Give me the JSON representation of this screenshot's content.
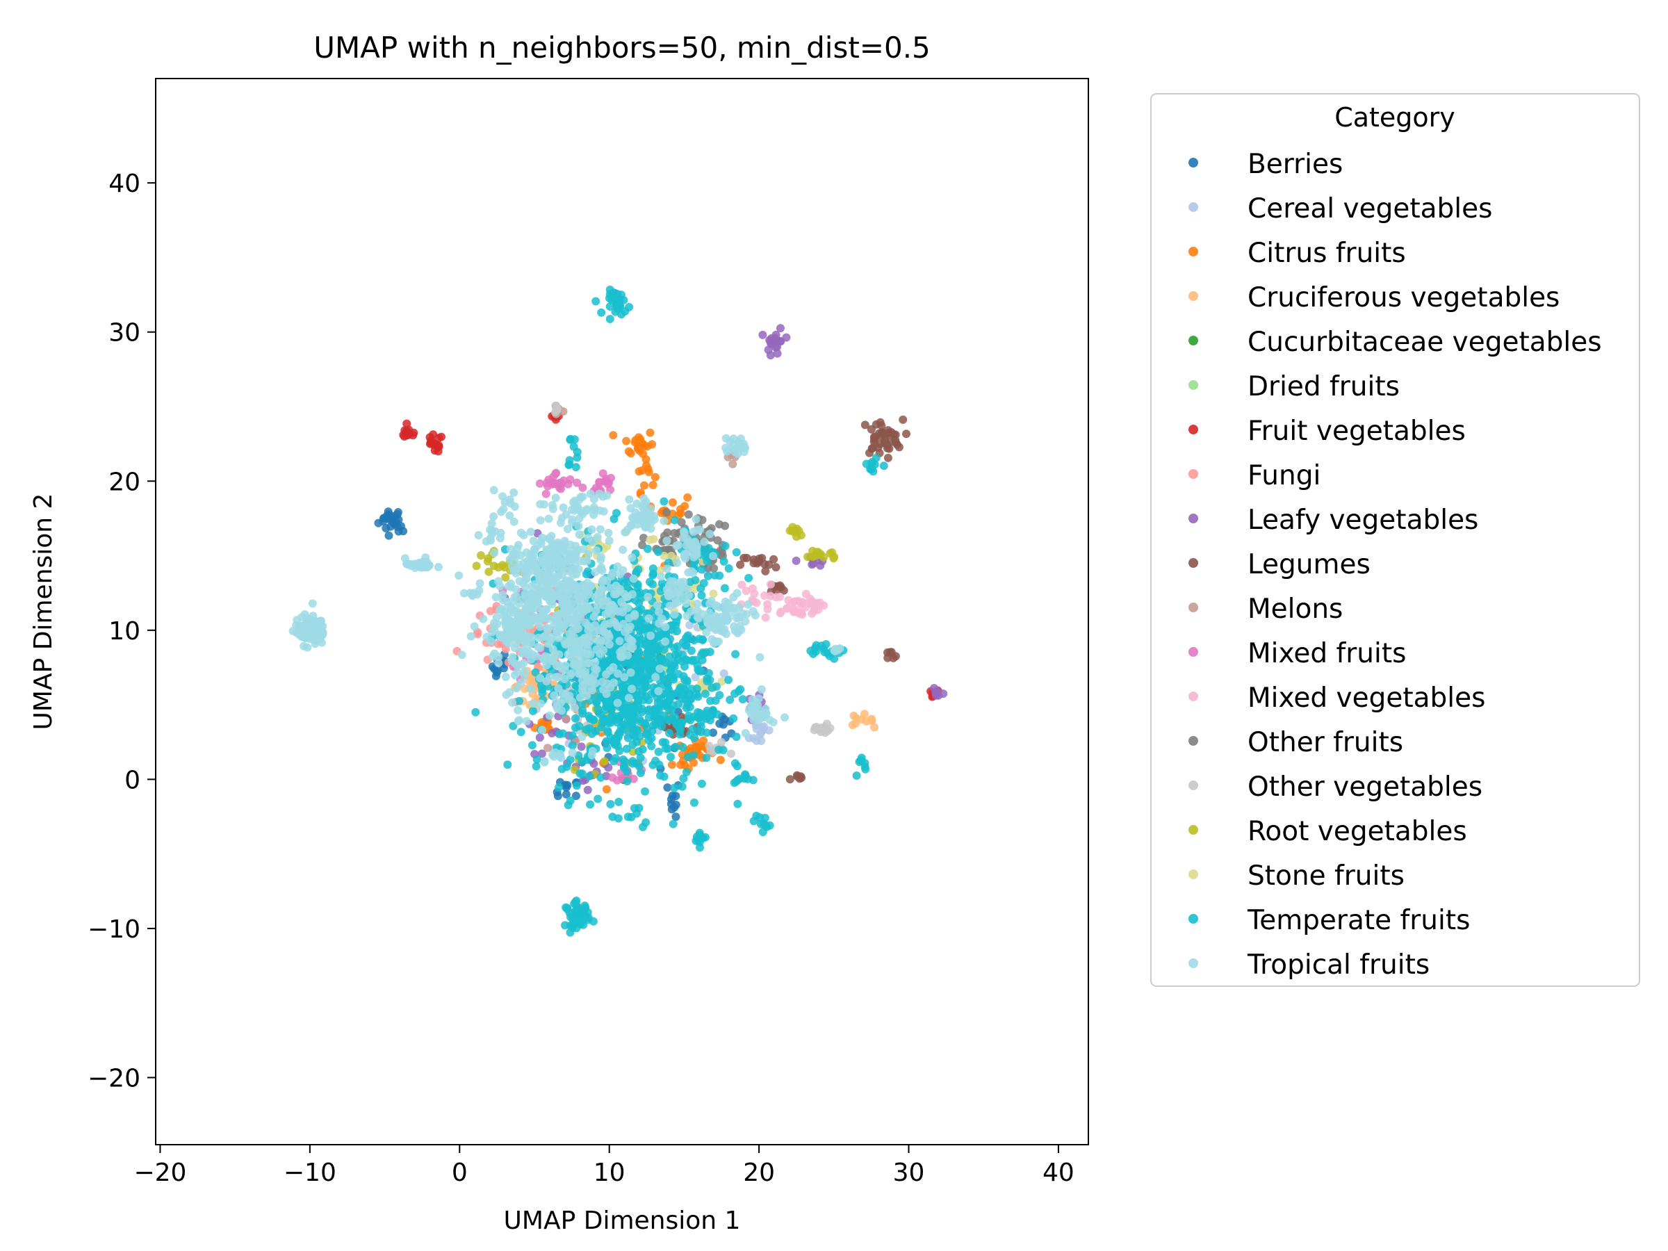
{
  "chart_data": {
    "type": "scatter",
    "title": "UMAP with n_neighbors=50, min_dist=0.5",
    "xlabel": "UMAP Dimension 1",
    "ylabel": "UMAP Dimension 2",
    "xlim": [
      -20.3,
      42
    ],
    "ylim": [
      -24.5,
      47
    ],
    "xticks": [
      -20,
      -10,
      0,
      10,
      20,
      30,
      40
    ],
    "yticks": [
      -20,
      -10,
      0,
      10,
      20,
      30,
      40
    ],
    "xtick_labels": [
      "−20",
      "−10",
      "0",
      "10",
      "20",
      "30",
      "40"
    ],
    "ytick_labels": [
      "−20",
      "−10",
      "0",
      "10",
      "20",
      "30",
      "40"
    ],
    "grid": false,
    "legend": {
      "title": "Category",
      "placement": "outside right"
    },
    "series": [
      {
        "name": "Berries",
        "color": "#1f77b4",
        "clusters": [
          [
            -4.6,
            17.4,
            0.4,
            0.4,
            20
          ],
          [
            -4.0,
            17.0,
            0.2,
            0.2,
            6
          ],
          [
            2.8,
            7.6,
            0.3,
            0.5,
            12
          ],
          [
            7.2,
            -0.8,
            0.4,
            0.4,
            10
          ],
          [
            14.3,
            -1.3,
            0.2,
            0.6,
            10
          ],
          [
            11.0,
            6.0,
            3.0,
            4.0,
            40
          ],
          [
            17.5,
            3.5,
            0.5,
            0.5,
            8
          ]
        ]
      },
      {
        "name": "Cereal vegetables",
        "color": "#aec7e8",
        "clusters": [
          [
            12.0,
            8.0,
            3.0,
            4.0,
            40
          ],
          [
            20.2,
            3.2,
            0.4,
            0.5,
            14
          ]
        ]
      },
      {
        "name": "Citrus fruits",
        "color": "#ff7f0e",
        "clusters": [
          [
            12.0,
            22.5,
            0.5,
            0.5,
            22
          ],
          [
            12.4,
            20.5,
            0.3,
            0.6,
            10
          ],
          [
            15.8,
            1.9,
            0.6,
            0.3,
            24
          ],
          [
            14.8,
            1.2,
            0.3,
            0.3,
            8
          ],
          [
            5.8,
            3.6,
            0.4,
            0.3,
            12
          ],
          [
            14.2,
            18.2,
            0.5,
            0.4,
            14
          ],
          [
            11.0,
            5.0,
            3.0,
            4.0,
            30
          ]
        ]
      },
      {
        "name": "Cruciferous vegetables",
        "color": "#ffbb78",
        "clusters": [
          [
            5.0,
            6.3,
            0.8,
            0.5,
            30
          ],
          [
            26.8,
            4.0,
            0.4,
            0.2,
            10
          ],
          [
            4.3,
            10.2,
            0.6,
            0.6,
            20
          ]
        ]
      },
      {
        "name": "Cucurbitaceae vegetables",
        "color": "#2ca02c",
        "clusters": [
          [
            11.0,
            8.0,
            2.0,
            3.0,
            10
          ]
        ]
      },
      {
        "name": "Dried fruits",
        "color": "#98df8a",
        "clusters": [
          [
            11.0,
            9.0,
            2.5,
            3.0,
            12
          ]
        ]
      },
      {
        "name": "Fruit vegetables",
        "color": "#d62728",
        "clusters": [
          [
            -3.4,
            23.2,
            0.3,
            0.2,
            12
          ],
          [
            -1.7,
            22.5,
            0.3,
            0.3,
            14
          ],
          [
            31.6,
            5.7,
            0.3,
            0.2,
            6
          ],
          [
            6.3,
            24.2,
            0.2,
            0.2,
            5
          ]
        ]
      },
      {
        "name": "Fungi",
        "color": "#ff9896",
        "clusters": [
          [
            3.0,
            9.5,
            1.2,
            1.0,
            30
          ],
          [
            6.0,
            9.0,
            1.0,
            1.5,
            20
          ]
        ]
      },
      {
        "name": "Leafy vegetables",
        "color": "#9467bd",
        "clusters": [
          [
            21.1,
            29.3,
            0.3,
            0.5,
            20
          ],
          [
            32.0,
            5.9,
            0.2,
            0.2,
            6
          ],
          [
            23.6,
            14.7,
            0.5,
            0.2,
            8
          ],
          [
            7.5,
            4.8,
            1.5,
            1.5,
            25
          ],
          [
            8.5,
            0.5,
            1.0,
            0.5,
            12
          ],
          [
            19.8,
            5.2,
            0.5,
            0.3,
            8
          ],
          [
            6.5,
            12.0,
            1.5,
            2.0,
            15
          ]
        ]
      },
      {
        "name": "Legumes",
        "color": "#8c564b",
        "clusters": [
          [
            28.2,
            22.9,
            0.7,
            0.6,
            40
          ],
          [
            28.7,
            8.2,
            0.3,
            0.2,
            6
          ],
          [
            22.7,
            0.0,
            0.3,
            0.2,
            6
          ],
          [
            20.0,
            14.5,
            0.6,
            0.3,
            14
          ],
          [
            14.5,
            3.5,
            0.8,
            0.5,
            20
          ],
          [
            21.5,
            12.8,
            0.4,
            0.2,
            8
          ]
        ]
      },
      {
        "name": "Melons",
        "color": "#c49c94",
        "clusters": [
          [
            6.5,
            24.8,
            0.2,
            0.2,
            6
          ],
          [
            8.0,
            4.5,
            1.5,
            1.5,
            12
          ],
          [
            18.3,
            22.0,
            0.3,
            0.3,
            6
          ]
        ]
      },
      {
        "name": "Mixed fruits",
        "color": "#e377c2",
        "clusters": [
          [
            6.5,
            19.8,
            0.6,
            0.4,
            22
          ],
          [
            9.3,
            19.8,
            0.5,
            0.4,
            16
          ],
          [
            11.2,
            0.6,
            0.4,
            0.4,
            10
          ],
          [
            5.5,
            10.5,
            1.0,
            2.0,
            20
          ]
        ]
      },
      {
        "name": "Mixed vegetables",
        "color": "#f7b6d2",
        "clusters": [
          [
            22.5,
            11.5,
            1.0,
            0.4,
            28
          ],
          [
            19.5,
            12.0,
            0.8,
            0.6,
            16
          ],
          [
            23.8,
            11.8,
            0.3,
            0.2,
            8
          ]
        ]
      },
      {
        "name": "Other fruits",
        "color": "#7f7f7f",
        "clusters": [
          [
            15.5,
            16.0,
            1.0,
            1.0,
            40
          ],
          [
            17.0,
            15.3,
            0.4,
            0.3,
            10
          ],
          [
            13.5,
            15.5,
            0.6,
            0.5,
            15
          ]
        ]
      },
      {
        "name": "Other vegetables",
        "color": "#c7c7c7",
        "clusters": [
          [
            24.2,
            3.3,
            0.4,
            0.2,
            14
          ],
          [
            6.5,
            24.9,
            0.2,
            0.2,
            5
          ],
          [
            8.5,
            4.5,
            1.5,
            1.5,
            20
          ],
          [
            17.0,
            2.0,
            0.5,
            0.3,
            8
          ]
        ]
      },
      {
        "name": "Root vegetables",
        "color": "#bcbd22",
        "clusters": [
          [
            22.5,
            16.6,
            0.3,
            0.2,
            10
          ],
          [
            24.2,
            15.1,
            0.6,
            0.2,
            16
          ],
          [
            1.8,
            14.7,
            0.3,
            0.3,
            8
          ],
          [
            3.3,
            14.2,
            0.4,
            0.3,
            10
          ],
          [
            10.0,
            3.5,
            1.5,
            1.5,
            20
          ],
          [
            9.5,
            10.5,
            1.5,
            2.0,
            15
          ]
        ]
      },
      {
        "name": "Stone fruits",
        "color": "#dbdb8d",
        "clusters": [
          [
            16.2,
            6.2,
            0.5,
            0.3,
            12
          ],
          [
            12.5,
            13.0,
            2.0,
            2.0,
            25
          ],
          [
            9.0,
            15.5,
            0.5,
            0.4,
            10
          ],
          [
            14.5,
            12.5,
            1.5,
            1.5,
            20
          ],
          [
            8.5,
            8.5,
            1.0,
            1.0,
            12
          ]
        ]
      },
      {
        "name": "Temperate fruits",
        "color": "#17becf",
        "clusters": [
          [
            10.6,
            32.0,
            0.4,
            0.4,
            30
          ],
          [
            7.9,
            -9.1,
            0.4,
            0.4,
            50
          ],
          [
            11.5,
            7.0,
            2.5,
            4.0,
            700
          ],
          [
            10.0,
            8.5,
            3.2,
            3.0,
            250
          ],
          [
            7.5,
            21.8,
            0.2,
            0.6,
            10
          ],
          [
            16.0,
            -3.9,
            0.2,
            0.3,
            10
          ],
          [
            20.1,
            -2.9,
            0.3,
            0.3,
            10
          ],
          [
            18.5,
            0.2,
            0.6,
            0.5,
            12
          ],
          [
            24.9,
            8.6,
            0.7,
            0.2,
            16
          ],
          [
            26.8,
            0.8,
            0.2,
            0.4,
            8
          ],
          [
            27.5,
            21.2,
            0.3,
            0.4,
            10
          ],
          [
            15.8,
            4.0,
            0.8,
            0.8,
            30
          ],
          [
            16.0,
            14.5,
            1.0,
            1.0,
            30
          ]
        ]
      },
      {
        "name": "Tropical fruits",
        "color": "#9edae5",
        "clusters": [
          [
            -10.0,
            10.0,
            0.5,
            0.5,
            90
          ],
          [
            -9.4,
            9.5,
            0.2,
            0.2,
            8
          ],
          [
            -2.6,
            14.4,
            0.5,
            0.2,
            24
          ],
          [
            0.8,
            12.5,
            0.3,
            0.2,
            6
          ],
          [
            7.3,
            11.0,
            2.5,
            3.0,
            500
          ],
          [
            6.0,
            13.5,
            1.5,
            1.5,
            120
          ],
          [
            3.5,
            10.5,
            1.0,
            0.8,
            60
          ],
          [
            8.0,
            6.5,
            0.8,
            0.8,
            30
          ],
          [
            8.2,
            18.2,
            0.7,
            0.4,
            30
          ],
          [
            12.3,
            17.6,
            0.6,
            0.6,
            40
          ],
          [
            15.3,
            15.5,
            0.6,
            0.7,
            40
          ],
          [
            14.5,
            12.5,
            0.6,
            0.6,
            25
          ],
          [
            17.5,
            10.6,
            1.0,
            0.8,
            80
          ],
          [
            18.5,
            22.3,
            0.4,
            0.3,
            20
          ],
          [
            20.0,
            4.7,
            0.4,
            0.6,
            30
          ],
          [
            2.5,
            16.0,
            0.5,
            0.5,
            10
          ],
          [
            3.2,
            18.6,
            0.4,
            0.5,
            10
          ],
          [
            6.5,
            1.5,
            0.3,
            0.3,
            8
          ],
          [
            25.0,
            8.7,
            0.3,
            0.1,
            6
          ],
          [
            6.0,
            15.5,
            0.8,
            0.5,
            20
          ]
        ]
      }
    ]
  }
}
